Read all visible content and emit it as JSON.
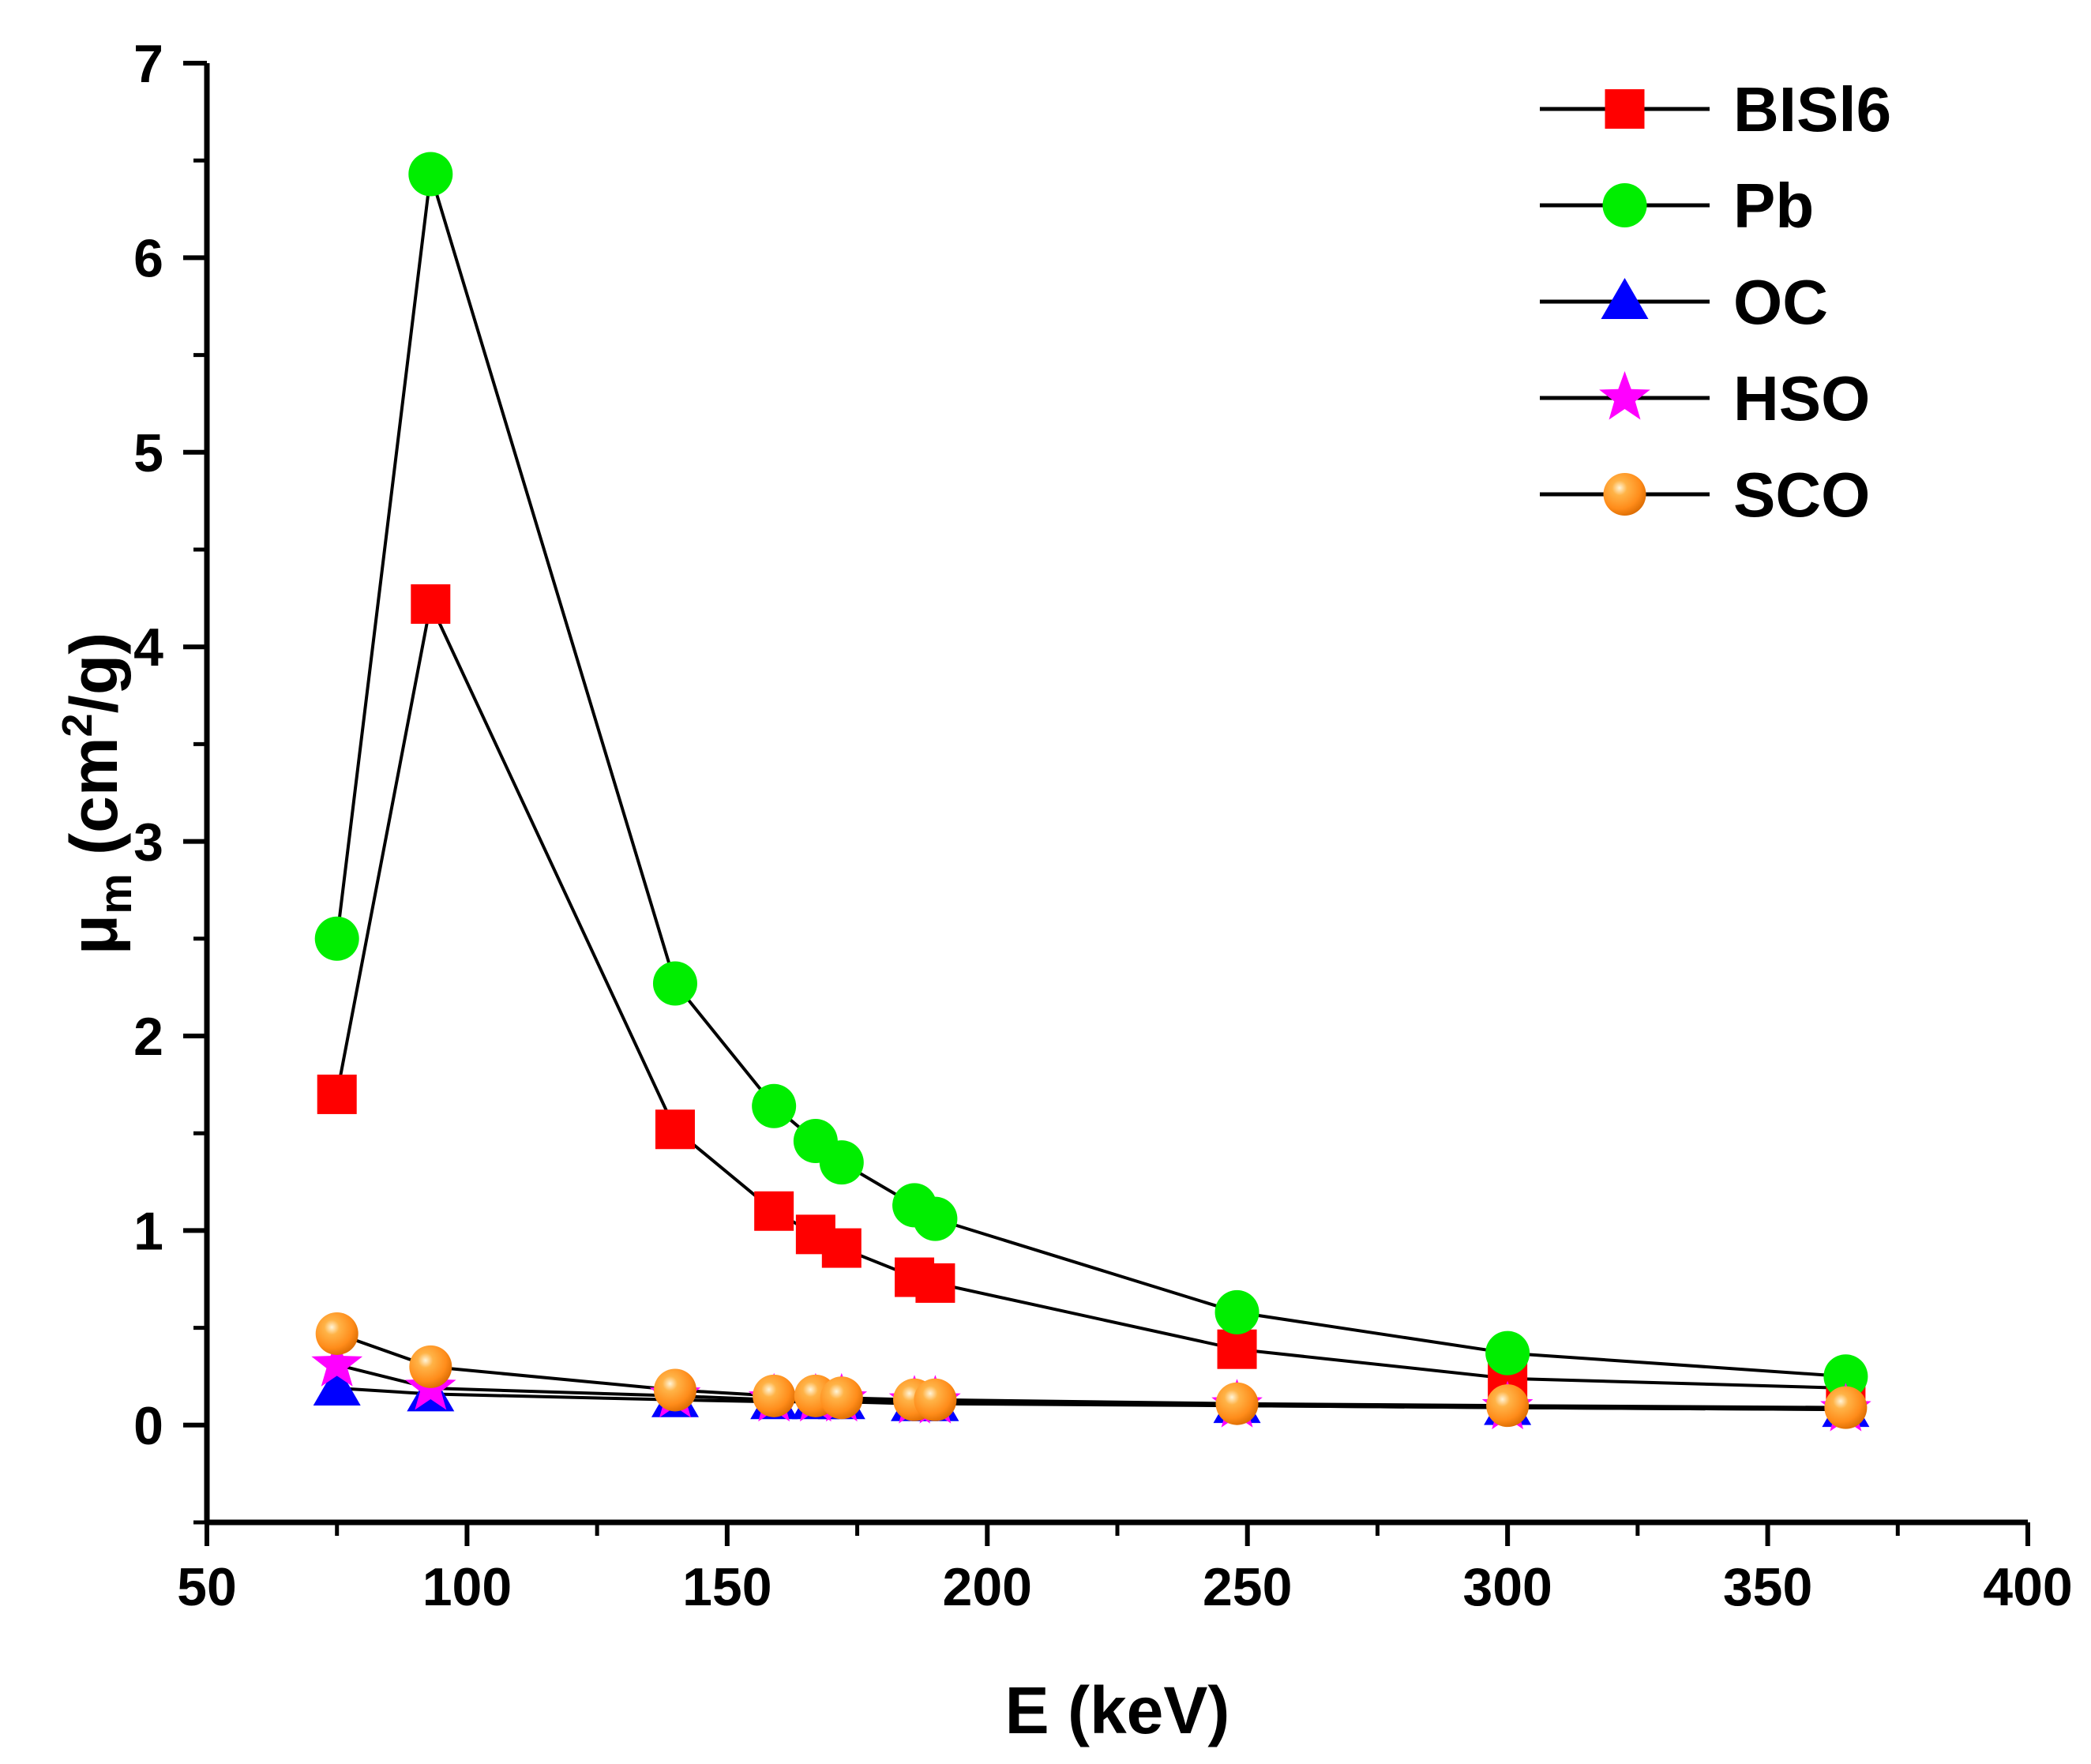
{
  "chart_data": {
    "type": "line",
    "title": "",
    "xlabel": "E (keV)",
    "ylabel_main": "μ",
    "ylabel_sub": "m",
    "ylabel_rest": " (cm",
    "ylabel_sup": "2",
    "ylabel_end": "/g)",
    "xlim": [
      50,
      400
    ],
    "ylim": [
      -0.5,
      7
    ],
    "xticks": [
      50,
      100,
      150,
      200,
      250,
      300,
      350,
      400
    ],
    "yticks": [
      0,
      1,
      2,
      3,
      4,
      5,
      6,
      7
    ],
    "grid": false,
    "legend_position": "top-right",
    "x": [
      75,
      93,
      140,
      159,
      167,
      172,
      186,
      190,
      248,
      300,
      365
    ],
    "series": [
      {
        "name": "BISl6",
        "marker": "square",
        "color": "#ff0000",
        "values": [
          1.7,
          4.22,
          1.52,
          1.1,
          0.98,
          0.91,
          0.76,
          0.73,
          0.39,
          0.24,
          0.19
        ]
      },
      {
        "name": "Pb",
        "marker": "circle",
        "color": "#00ee00",
        "values": [
          2.5,
          6.43,
          2.27,
          1.64,
          1.46,
          1.35,
          1.13,
          1.06,
          0.58,
          0.37,
          0.25
        ]
      },
      {
        "name": "OC",
        "marker": "triangle",
        "color": "#0000ff",
        "values": [
          0.19,
          0.16,
          0.13,
          0.12,
          0.12,
          0.12,
          0.11,
          0.11,
          0.1,
          0.09,
          0.08
        ]
      },
      {
        "name": "HSO",
        "marker": "star",
        "color": "#ff00ff",
        "values": [
          0.31,
          0.19,
          0.15,
          0.13,
          0.13,
          0.13,
          0.12,
          0.12,
          0.1,
          0.09,
          0.08
        ]
      },
      {
        "name": "SCO",
        "marker": "sphere",
        "color": "#ff8c1a",
        "values": [
          0.47,
          0.3,
          0.18,
          0.15,
          0.15,
          0.14,
          0.13,
          0.13,
          0.11,
          0.1,
          0.09
        ]
      }
    ]
  }
}
